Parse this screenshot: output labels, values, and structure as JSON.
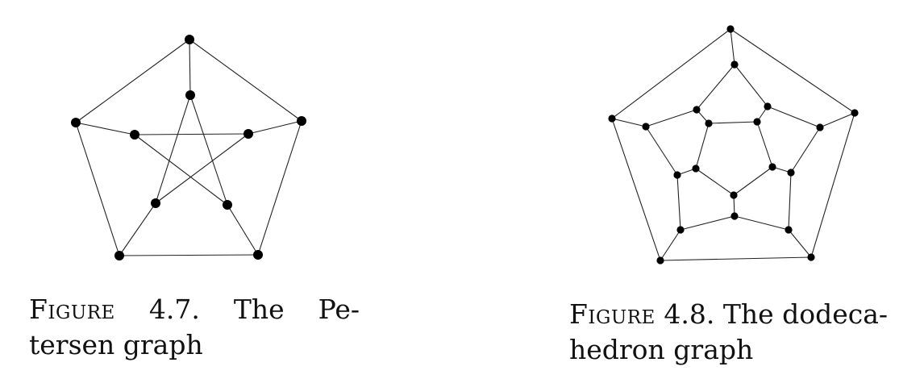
{
  "figures": [
    {
      "label": "Figure",
      "number": "4.7.",
      "caption_line1_words": [
        "The",
        "Pe-"
      ],
      "caption_line2": "tersen graph"
    },
    {
      "label": "Figure",
      "number": "4.8.",
      "caption_line1_rest": "The dodeca-",
      "caption_line2": "hedron graph"
    }
  ],
  "colors": {
    "edge": "#222222",
    "vertex": "#000000"
  }
}
